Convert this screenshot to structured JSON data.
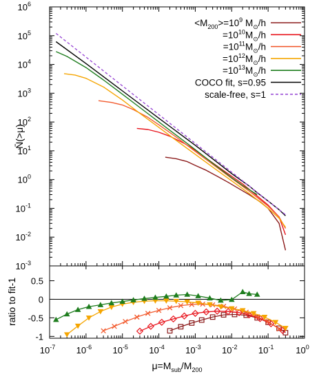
{
  "chart_data": [
    {
      "type": "line",
      "panel": "top",
      "xscale": "log",
      "yscale": "log",
      "xlim": [
        1e-07,
        1
      ],
      "ylim": [
        0.001,
        1000000
      ],
      "ylabel": "N̄(>μ)",
      "x_tick_labels": [
        "10",
        "10",
        "10",
        "10",
        "10",
        "10",
        "10",
        "10"
      ],
      "x_tick_exponents": [
        "-7",
        "-6",
        "-5",
        "-4",
        "-3",
        "-2",
        "-1",
        "0"
      ],
      "y_tick_labels": [
        "10",
        "10",
        "10",
        "10",
        "10",
        "10",
        "10",
        "10",
        "10",
        "10"
      ],
      "y_tick_exponents": [
        "-3",
        "-2",
        "-1",
        "0",
        "1",
        "2",
        "3",
        "4",
        "5",
        "6"
      ],
      "legend_position": "top-right",
      "legend": [
        {
          "prefix": "<M",
          "sub": "200",
          "mid": ">=10",
          "sup": "9",
          "unit": " M",
          "usub": "⊙",
          "tail": "/h",
          "color": "#8b1a1a"
        },
        {
          "prefix": "",
          "sub": "",
          "mid": "=10",
          "sup": "10",
          "unit": "M",
          "usub": "⊙",
          "tail": "/h",
          "color": "#e8141c"
        },
        {
          "prefix": "",
          "sub": "",
          "mid": "=10",
          "sup": "11",
          "unit": "M",
          "usub": "⊙",
          "tail": "/h",
          "color": "#f2592c"
        },
        {
          "prefix": "",
          "sub": "",
          "mid": "=10",
          "sup": "12",
          "unit": "M",
          "usub": "⊙",
          "tail": "/h",
          "color": "#f5a500"
        },
        {
          "prefix": "",
          "sub": "",
          "mid": "=10",
          "sup": "13",
          "unit": "M",
          "usub": "⊙",
          "tail": "/h",
          "color": "#1e7d1e"
        },
        {
          "prefix": "COCO fit, s=0.95",
          "sub": "",
          "mid": "",
          "sup": "",
          "unit": "",
          "usub": "",
          "tail": "",
          "color": "#000000"
        },
        {
          "prefix": "scale-free, s=1",
          "sub": "",
          "mid": "",
          "sup": "",
          "unit": "",
          "usub": "",
          "tail": "",
          "color": "#9c4fd6",
          "dashed": true
        }
      ],
      "series": [
        {
          "color": "#8b1a1a",
          "x": [
            0.00015,
            0.0003,
            0.0006,
            0.001,
            0.002,
            0.004,
            0.008,
            0.015,
            0.03,
            0.06,
            0.1,
            0.2,
            0.3
          ],
          "y": [
            6.0,
            5.3,
            4.2,
            3.1,
            2.1,
            1.3,
            0.8,
            0.5,
            0.3,
            0.17,
            0.1,
            0.03,
            0.0035
          ]
        },
        {
          "color": "#e8141c",
          "x": [
            2.5e-05,
            5e-05,
            0.0001,
            0.0002,
            0.0005,
            0.001,
            0.002,
            0.005,
            0.01,
            0.02,
            0.05,
            0.1,
            0.2,
            0.3
          ],
          "y": [
            60,
            55,
            44,
            32,
            18,
            10.5,
            5.5,
            2.4,
            1.3,
            0.7,
            0.27,
            0.13,
            0.05,
            0.012
          ]
        },
        {
          "color": "#f2592c",
          "x": [
            2.2e-06,
            5e-06,
            1e-05,
            2e-05,
            5e-05,
            0.0001,
            0.0003,
            0.001,
            0.003,
            0.01,
            0.03,
            0.1,
            0.2,
            0.3
          ],
          "y": [
            550,
            480,
            390,
            270,
            145,
            80,
            30,
            9.5,
            3.4,
            1.1,
            0.4,
            0.12,
            0.05,
            0.02
          ]
        },
        {
          "color": "#f5a500",
          "x": [
            2.5e-07,
            5e-07,
            1e-06,
            3e-06,
            1e-05,
            3e-05,
            0.0001,
            0.0003,
            0.001,
            0.003,
            0.01,
            0.03,
            0.1,
            0.2,
            0.3
          ],
          "y": [
            4800,
            4300,
            3300,
            1650,
            580,
            200,
            65,
            23,
            7.5,
            2.7,
            0.9,
            0.33,
            0.1,
            0.045,
            0.022
          ]
        },
        {
          "color": "#1e7d1e",
          "x": [
            1.5e-07,
            3e-07,
            1e-06,
            3e-06,
            1e-05,
            3e-05,
            0.0001,
            0.0003,
            0.001,
            0.003,
            0.01,
            0.02,
            0.03,
            0.05
          ],
          "y": [
            28000,
            19000,
            7800,
            2900,
            920,
            320,
            100,
            35,
            11,
            3.7,
            1.15,
            0.62,
            0.45,
            0.3
          ]
        },
        {
          "color": "#000000",
          "x": [
            1.5e-07,
            1e-06,
            1e-05,
            0.0001,
            0.001,
            0.01,
            0.03,
            0.05,
            0.1,
            0.2,
            0.3
          ],
          "y": [
            62000,
            10700,
            1200,
            135,
            15.5,
            1.6,
            0.6,
            0.35,
            0.18,
            0.09,
            0.055
          ]
        },
        {
          "color": "#9c4fd6",
          "dashed": true,
          "x": [
            1.5e-07,
            1e-06,
            1e-05,
            0.0001,
            0.001,
            0.01,
            0.1,
            0.3
          ],
          "y": [
            120000,
            18000,
            1800,
            180,
            18,
            1.8,
            0.18,
            0.06
          ]
        }
      ]
    },
    {
      "type": "line",
      "panel": "bottom",
      "xscale": "log",
      "xlim": [
        1e-07,
        1
      ],
      "ylim": [
        -1.05,
        0.9
      ],
      "ylabel": "ratio to fit-1",
      "xlabel_parts": {
        "a": "μ=M",
        "asub": "sub",
        "b": "/M",
        "bsub": "200"
      },
      "y_ticks": [
        0.5,
        0,
        -0.5,
        -1
      ],
      "y_tick_labels": [
        "0.5",
        "0",
        "-0.5",
        "-1"
      ],
      "reference_line": 0,
      "series": [
        {
          "color": "#8b1a1a",
          "marker": "square-open",
          "x": [
            0.0002,
            0.0004,
            0.0008,
            0.0015,
            0.003,
            0.006,
            0.012,
            0.025,
            0.05,
            0.1,
            0.2,
            0.3
          ],
          "y": [
            -0.85,
            -0.74,
            -0.64,
            -0.56,
            -0.48,
            -0.42,
            -0.41,
            -0.43,
            -0.5,
            -0.62,
            -0.78,
            -0.9
          ]
        },
        {
          "color": "#e8141c",
          "marker": "diamond-open",
          "x": [
            3e-05,
            6e-05,
            0.00012,
            0.00025,
            0.0005,
            0.001,
            0.002,
            0.004,
            0.008,
            0.016,
            0.03,
            0.06,
            0.12,
            0.25
          ],
          "y": [
            -0.86,
            -0.73,
            -0.62,
            -0.53,
            -0.45,
            -0.38,
            -0.34,
            -0.32,
            -0.33,
            -0.36,
            -0.42,
            -0.52,
            -0.66,
            -0.84
          ]
        },
        {
          "color": "#f2592c",
          "marker": "cross",
          "x": [
            3e-06,
            6e-06,
            1.2e-05,
            2.5e-05,
            5e-05,
            0.0001,
            0.0002,
            0.0004,
            0.0008,
            0.0016,
            0.003,
            0.006,
            0.012,
            0.025,
            0.05,
            0.1,
            0.2
          ],
          "y": [
            -0.85,
            -0.73,
            -0.6,
            -0.48,
            -0.38,
            -0.3,
            -0.23,
            -0.17,
            -0.14,
            -0.13,
            -0.15,
            -0.19,
            -0.26,
            -0.35,
            -0.47,
            -0.6,
            -0.8
          ]
        },
        {
          "color": "#f5a500",
          "marker": "triangle-down",
          "x": [
            3e-07,
            6e-07,
            1.2e-06,
            2.5e-06,
            5e-06,
            1e-05,
            2e-05,
            4e-05,
            8e-05,
            0.00016,
            0.0003,
            0.0006,
            0.0012,
            0.0025,
            0.005,
            0.01,
            0.02,
            0.04,
            0.08,
            0.16,
            0.3
          ],
          "y": [
            -0.95,
            -0.72,
            -0.5,
            -0.33,
            -0.21,
            -0.13,
            -0.08,
            -0.05,
            -0.04,
            -0.04,
            -0.05,
            -0.07,
            -0.1,
            -0.14,
            -0.2,
            -0.25,
            -0.3,
            -0.38,
            -0.48,
            -0.62,
            -0.78
          ]
        },
        {
          "color": "#1e7d1e",
          "marker": "triangle-up",
          "x": [
            1.5e-07,
            3e-07,
            6e-07,
            1.2e-06,
            2.5e-06,
            5e-06,
            1e-05,
            2e-05,
            4e-05,
            8e-05,
            0.00016,
            0.0003,
            0.0006,
            0.0012,
            0.0025,
            0.005,
            0.01,
            0.02,
            0.03,
            0.05
          ],
          "y": [
            -0.55,
            -0.4,
            -0.28,
            -0.2,
            -0.15,
            -0.1,
            -0.06,
            -0.02,
            0.02,
            0.05,
            0.08,
            0.11,
            0.13,
            0.09,
            0.03,
            -0.03,
            -0.01,
            0.2,
            0.15,
            0.13
          ]
        }
      ]
    }
  ]
}
